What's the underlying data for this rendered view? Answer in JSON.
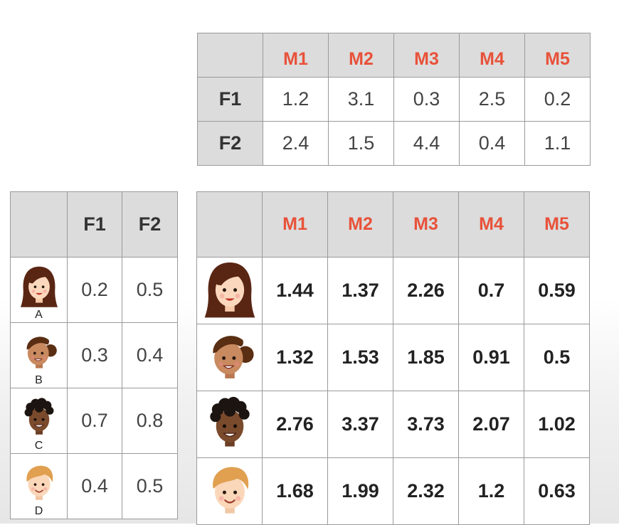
{
  "movies": [
    "M1",
    "M2",
    "M3",
    "M4",
    "M5"
  ],
  "features": [
    "F1",
    "F2"
  ],
  "movie_features": [
    {
      "feature": "F1",
      "values": [
        "1.2",
        "3.1",
        "0.3",
        "2.5",
        "0.2"
      ]
    },
    {
      "feature": "F2",
      "values": [
        "2.4",
        "1.5",
        "4.4",
        "0.4",
        "1.1"
      ]
    }
  ],
  "users": [
    {
      "label": "A",
      "avatar": "woman-long-brown-hair-icon",
      "f1": "0.2",
      "f2": "0.5",
      "predictions": [
        "1.44",
        "1.37",
        "2.26",
        "0.7",
        "0.59"
      ]
    },
    {
      "label": "B",
      "avatar": "woman-hair-bun-icon",
      "f1": "0.3",
      "f2": "0.4",
      "predictions": [
        "1.32",
        "1.53",
        "1.85",
        "0.91",
        "0.5"
      ]
    },
    {
      "label": "C",
      "avatar": "man-curly-black-hair-icon",
      "f1": "0.7",
      "f2": "0.8",
      "predictions": [
        "2.76",
        "3.37",
        "3.73",
        "2.07",
        "1.02"
      ]
    },
    {
      "label": "D",
      "avatar": "man-blond-hair-icon",
      "f1": "0.4",
      "f2": "0.5",
      "predictions": [
        "1.68",
        "1.99",
        "2.32",
        "1.2",
        "0.63"
      ]
    }
  ],
  "colors": {
    "header_bg": "#dcdcdc",
    "movie_label": "#e8523a",
    "grid_line": "#9a9a9a"
  }
}
